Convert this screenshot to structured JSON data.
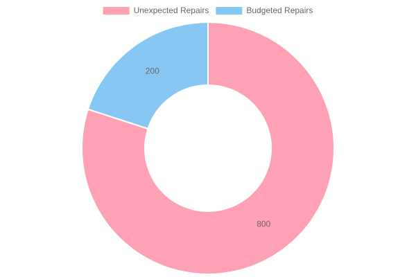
{
  "chart_data": {
    "type": "doughnut",
    "categories": [
      "Unexpected Repairs",
      "Budgeted Repairs"
    ],
    "values": [
      800,
      200
    ],
    "colors": [
      "#ffa1b5",
      "#86c7f3"
    ],
    "legend": "top"
  }
}
